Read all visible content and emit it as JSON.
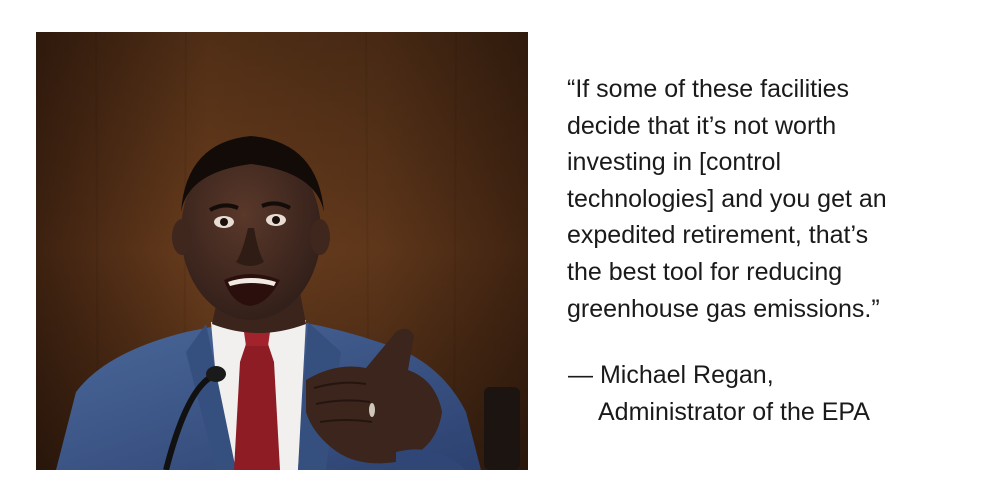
{
  "quote": {
    "lines": [
      "“If some of these facilities",
      "decide that it’s not worth",
      "investing in [control",
      "technologies] and you get an",
      "expedited retirement, that’s",
      "the best tool for reducing",
      "greenhouse gas emissions.”"
    ]
  },
  "attribution": {
    "name": "— Michael Regan,",
    "title": "Administrator of the EPA"
  },
  "colors": {
    "background_wood": "#5a3419",
    "suit": "#3e5a8a",
    "tie": "#8e1c24",
    "shirt": "#f2f0ee",
    "skin": "#4a2e22"
  }
}
